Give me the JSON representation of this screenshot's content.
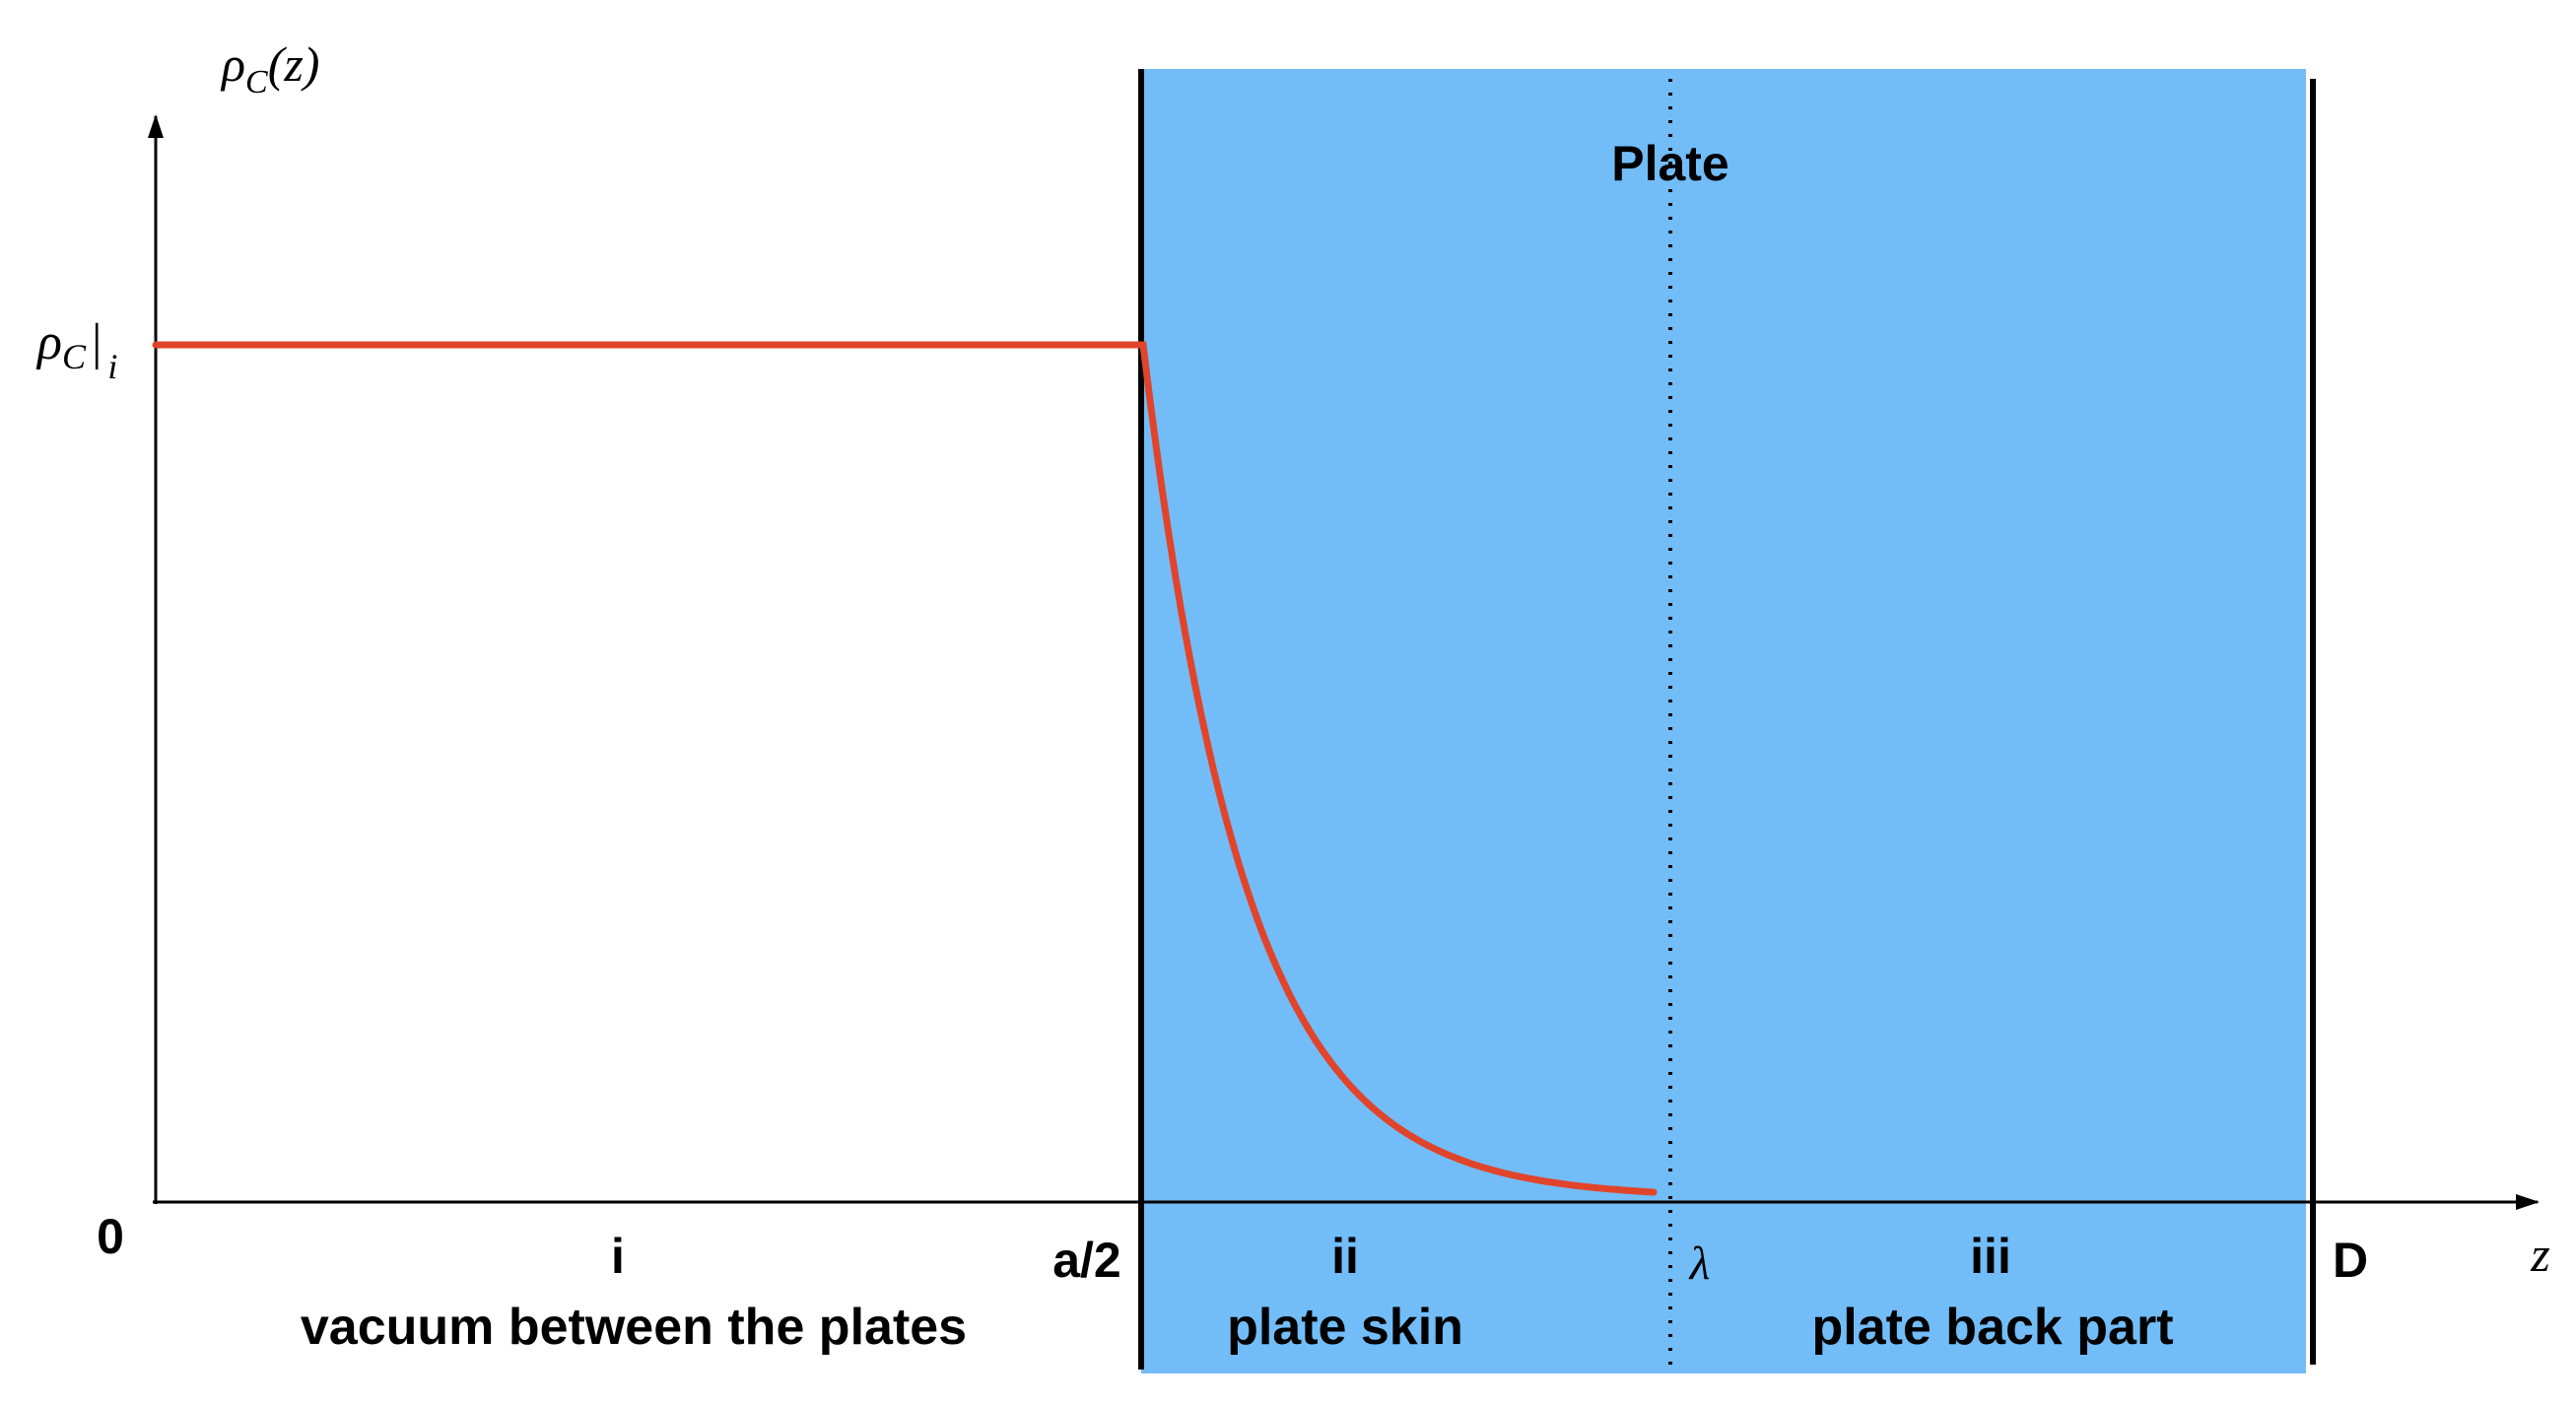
{
  "colors": {
    "plate_fill": "#72bdf8",
    "curve": "#e0452c",
    "axis": "#000000"
  },
  "plate_title": "Plate",
  "axes": {
    "y_symbol": "ρ",
    "y_symbol_sub": "C",
    "y_symbol_arg": "(z)",
    "x_label": "z",
    "level_symbol": "ρ",
    "level_symbol_sub": "C",
    "level_symbol_bar": "|",
    "level_symbol_index": "i"
  },
  "ticks": {
    "origin": "0",
    "half_gap": "a/2",
    "skin_depth": "λ",
    "thickness": "D"
  },
  "regions": [
    {
      "numeral": "i",
      "description": "vacuum between the plates"
    },
    {
      "numeral": "ii",
      "description": "plate skin"
    },
    {
      "numeral": "iii",
      "description": "plate back part"
    }
  ],
  "curve": {
    "level_before_plate": "constant",
    "shape_in_skin": "exponential decay to zero at λ"
  }
}
